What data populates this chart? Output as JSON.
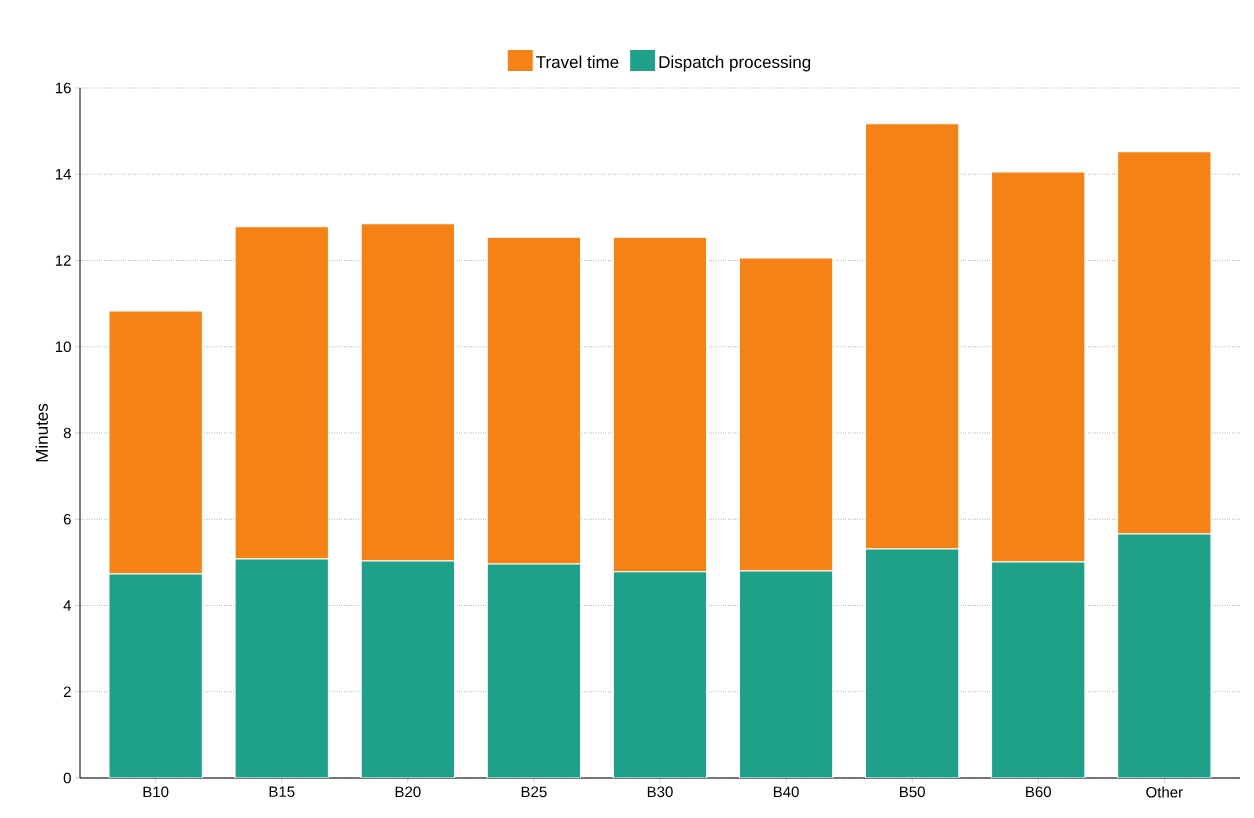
{
  "chart_data": {
    "type": "bar",
    "stacked": true,
    "ylabel": "Minutes",
    "categories": [
      "B10",
      "B15",
      "B20",
      "B25",
      "B30",
      "B40",
      "B50",
      "B60",
      "Other"
    ],
    "series": [
      {
        "name": "Dispatch processing",
        "color": "#1fa088",
        "values": [
          4.73,
          5.08,
          5.03,
          4.96,
          4.78,
          4.8,
          5.31,
          5.01,
          5.66
        ]
      },
      {
        "name": "Travel time",
        "color": "#f58216",
        "values": [
          6.1,
          7.7,
          7.82,
          7.58,
          7.76,
          7.26,
          9.86,
          9.04,
          8.86
        ]
      }
    ],
    "ylim": [
      0,
      16
    ],
    "yticks": [
      0,
      2,
      4,
      6,
      8,
      10,
      12,
      14,
      16
    ],
    "grid": "y",
    "legend": "top"
  }
}
